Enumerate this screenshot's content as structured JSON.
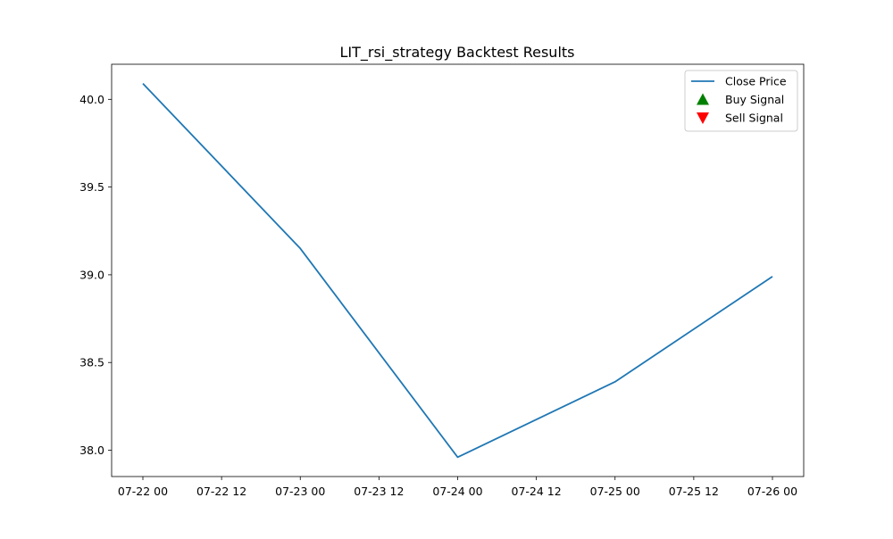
{
  "chart_data": {
    "type": "line",
    "title": "LIT_rsi_strategy Backtest Results",
    "xlabel": "",
    "ylabel": "",
    "x": [
      "07-22 00",
      "07-23 00",
      "07-24 00",
      "07-25 00",
      "07-26 00"
    ],
    "x_ticks": [
      "07-22 00",
      "07-22 12",
      "07-23 00",
      "07-23 12",
      "07-24 00",
      "07-24 12",
      "07-25 00",
      "07-25 12",
      "07-26 00"
    ],
    "y_ticks": [
      38.0,
      38.5,
      39.0,
      39.5,
      40.0
    ],
    "ylim": [
      37.85,
      40.2
    ],
    "grid": false,
    "legend_position": "top-right",
    "series": [
      {
        "name": "Close Price",
        "type": "line",
        "color": "#1f77b4",
        "values": [
          40.09,
          39.15,
          37.96,
          38.39,
          38.99
        ]
      }
    ],
    "legend": [
      {
        "label": "Close Price",
        "marker": "line",
        "color": "#1f77b4"
      },
      {
        "label": "Buy Signal",
        "marker": "triangle-up",
        "color": "#008000"
      },
      {
        "label": "Sell Signal",
        "marker": "triangle-down",
        "color": "#ff0000"
      }
    ]
  }
}
